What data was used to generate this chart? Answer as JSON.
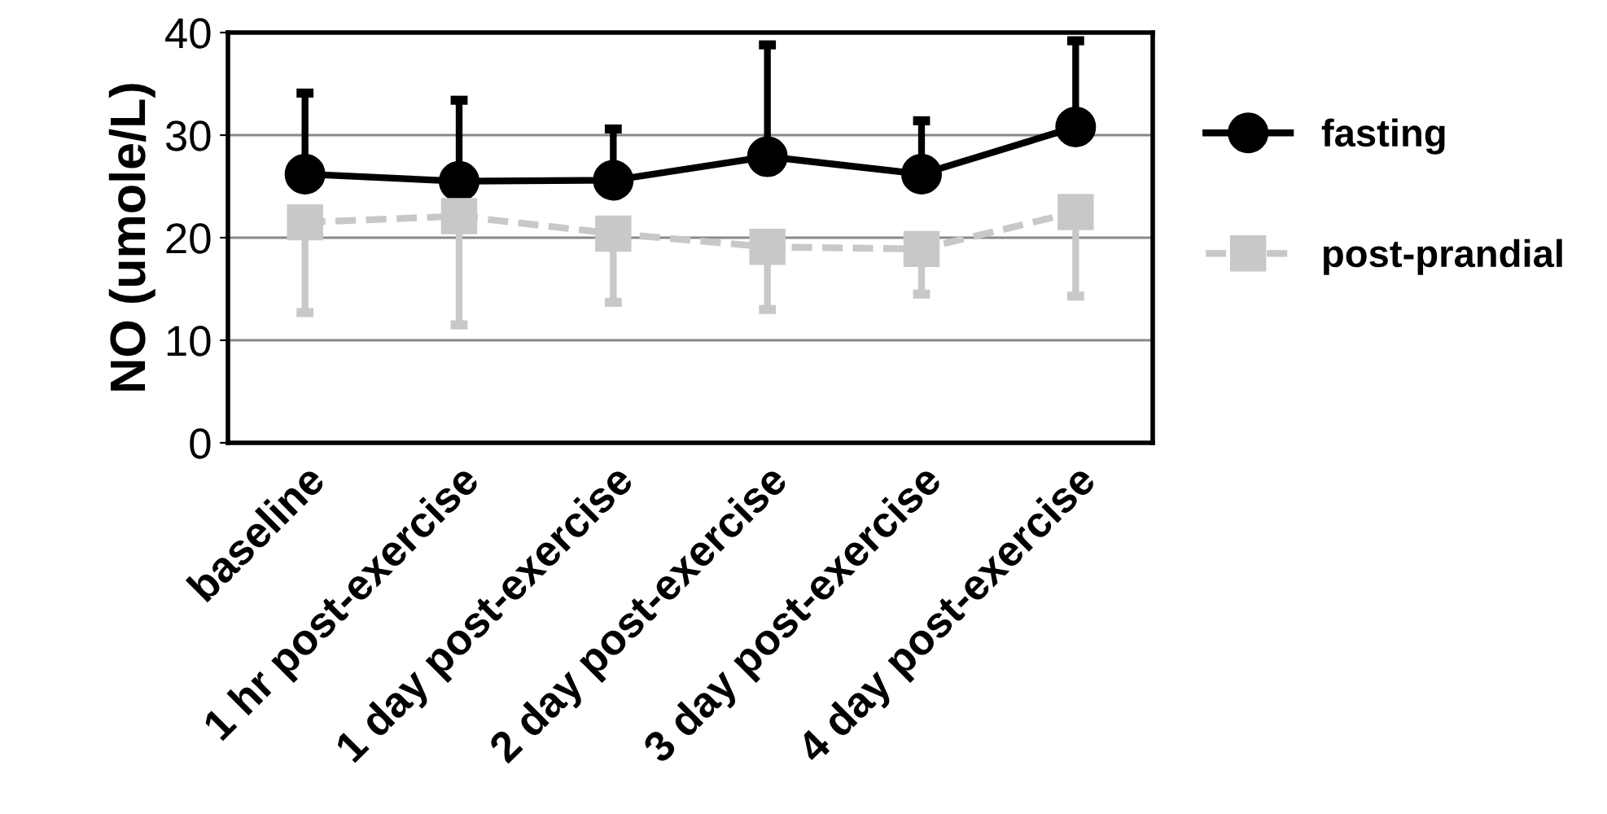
{
  "chart_data": {
    "type": "line",
    "ylabel": "NO (umole/L)",
    "categories": [
      "baseline",
      "1 hr post-exercise",
      "1 day post-exercise",
      "2 day post-exercise",
      "3 day post-exercise",
      "4 day post-exercise"
    ],
    "series": [
      {
        "name": "fasting",
        "color": "#000000",
        "marker": "circle",
        "line_style": "solid",
        "values": [
          26.2,
          25.5,
          25.6,
          27.9,
          26.2,
          30.8
        ],
        "errors": [
          [
            26.2,
            34.1
          ],
          [
            25.5,
            33.4
          ],
          [
            25.6,
            30.6
          ],
          [
            27.9,
            38.8
          ],
          [
            26.2,
            31.4
          ],
          [
            30.8,
            39.2
          ]
        ]
      },
      {
        "name": "post-prandial",
        "color": "#c8c8c8",
        "marker": "square",
        "line_style": "dashed",
        "values": [
          21.5,
          22.1,
          20.4,
          19.1,
          18.9,
          22.5
        ],
        "errors": [
          [
            12.7,
            21.5
          ],
          [
            11.5,
            22.1
          ],
          [
            13.7,
            20.4
          ],
          [
            13.0,
            19.1
          ],
          [
            14.5,
            18.9
          ],
          [
            14.3,
            22.5
          ]
        ]
      }
    ],
    "ylim": [
      0,
      40
    ],
    "yticks": [
      0,
      10,
      20,
      30,
      40
    ],
    "grid": "y",
    "legend": "right"
  }
}
